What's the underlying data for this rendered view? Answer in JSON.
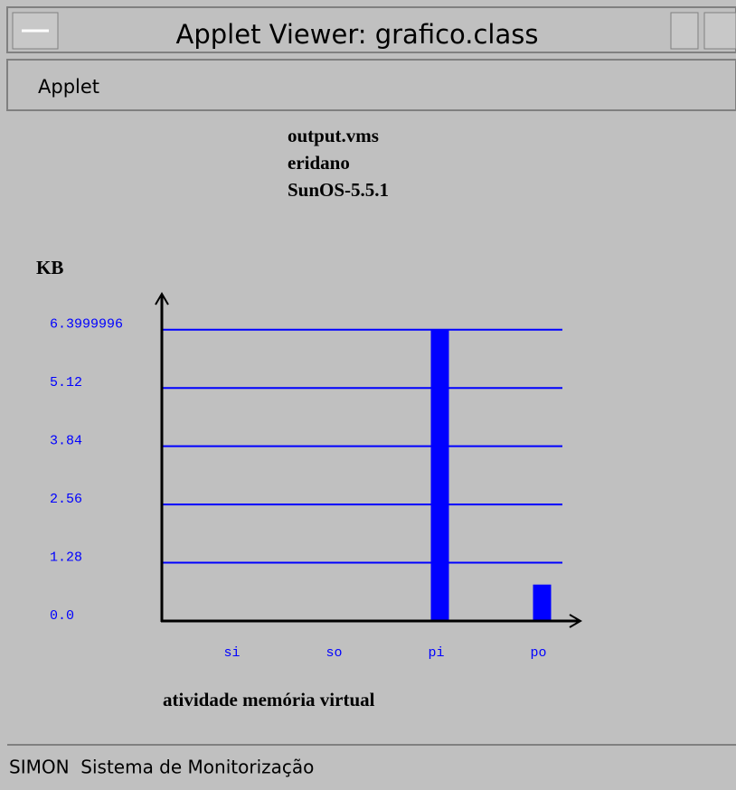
{
  "window": {
    "title": "Applet Viewer: grafico.class",
    "menu": [
      "Applet"
    ],
    "status": "SIMON  Sistema de Monitorização"
  },
  "chart_data": {
    "type": "bar",
    "title": [
      "output.vms",
      "eridano",
      "SunOS-5.5.1"
    ],
    "ylabel": "KB",
    "xlabel": "atividade memória virtual",
    "categories": [
      "si",
      "so",
      "pi",
      "po"
    ],
    "values": [
      0,
      0,
      6.4,
      0.8
    ],
    "color": "#0000ff",
    "ylim": [
      0,
      7.15
    ],
    "yticks": [
      {
        "value": 0,
        "label": "0.0"
      },
      1.28,
      2.56,
      3.84,
      5.12,
      6.3999996
    ],
    "grid": true
  }
}
